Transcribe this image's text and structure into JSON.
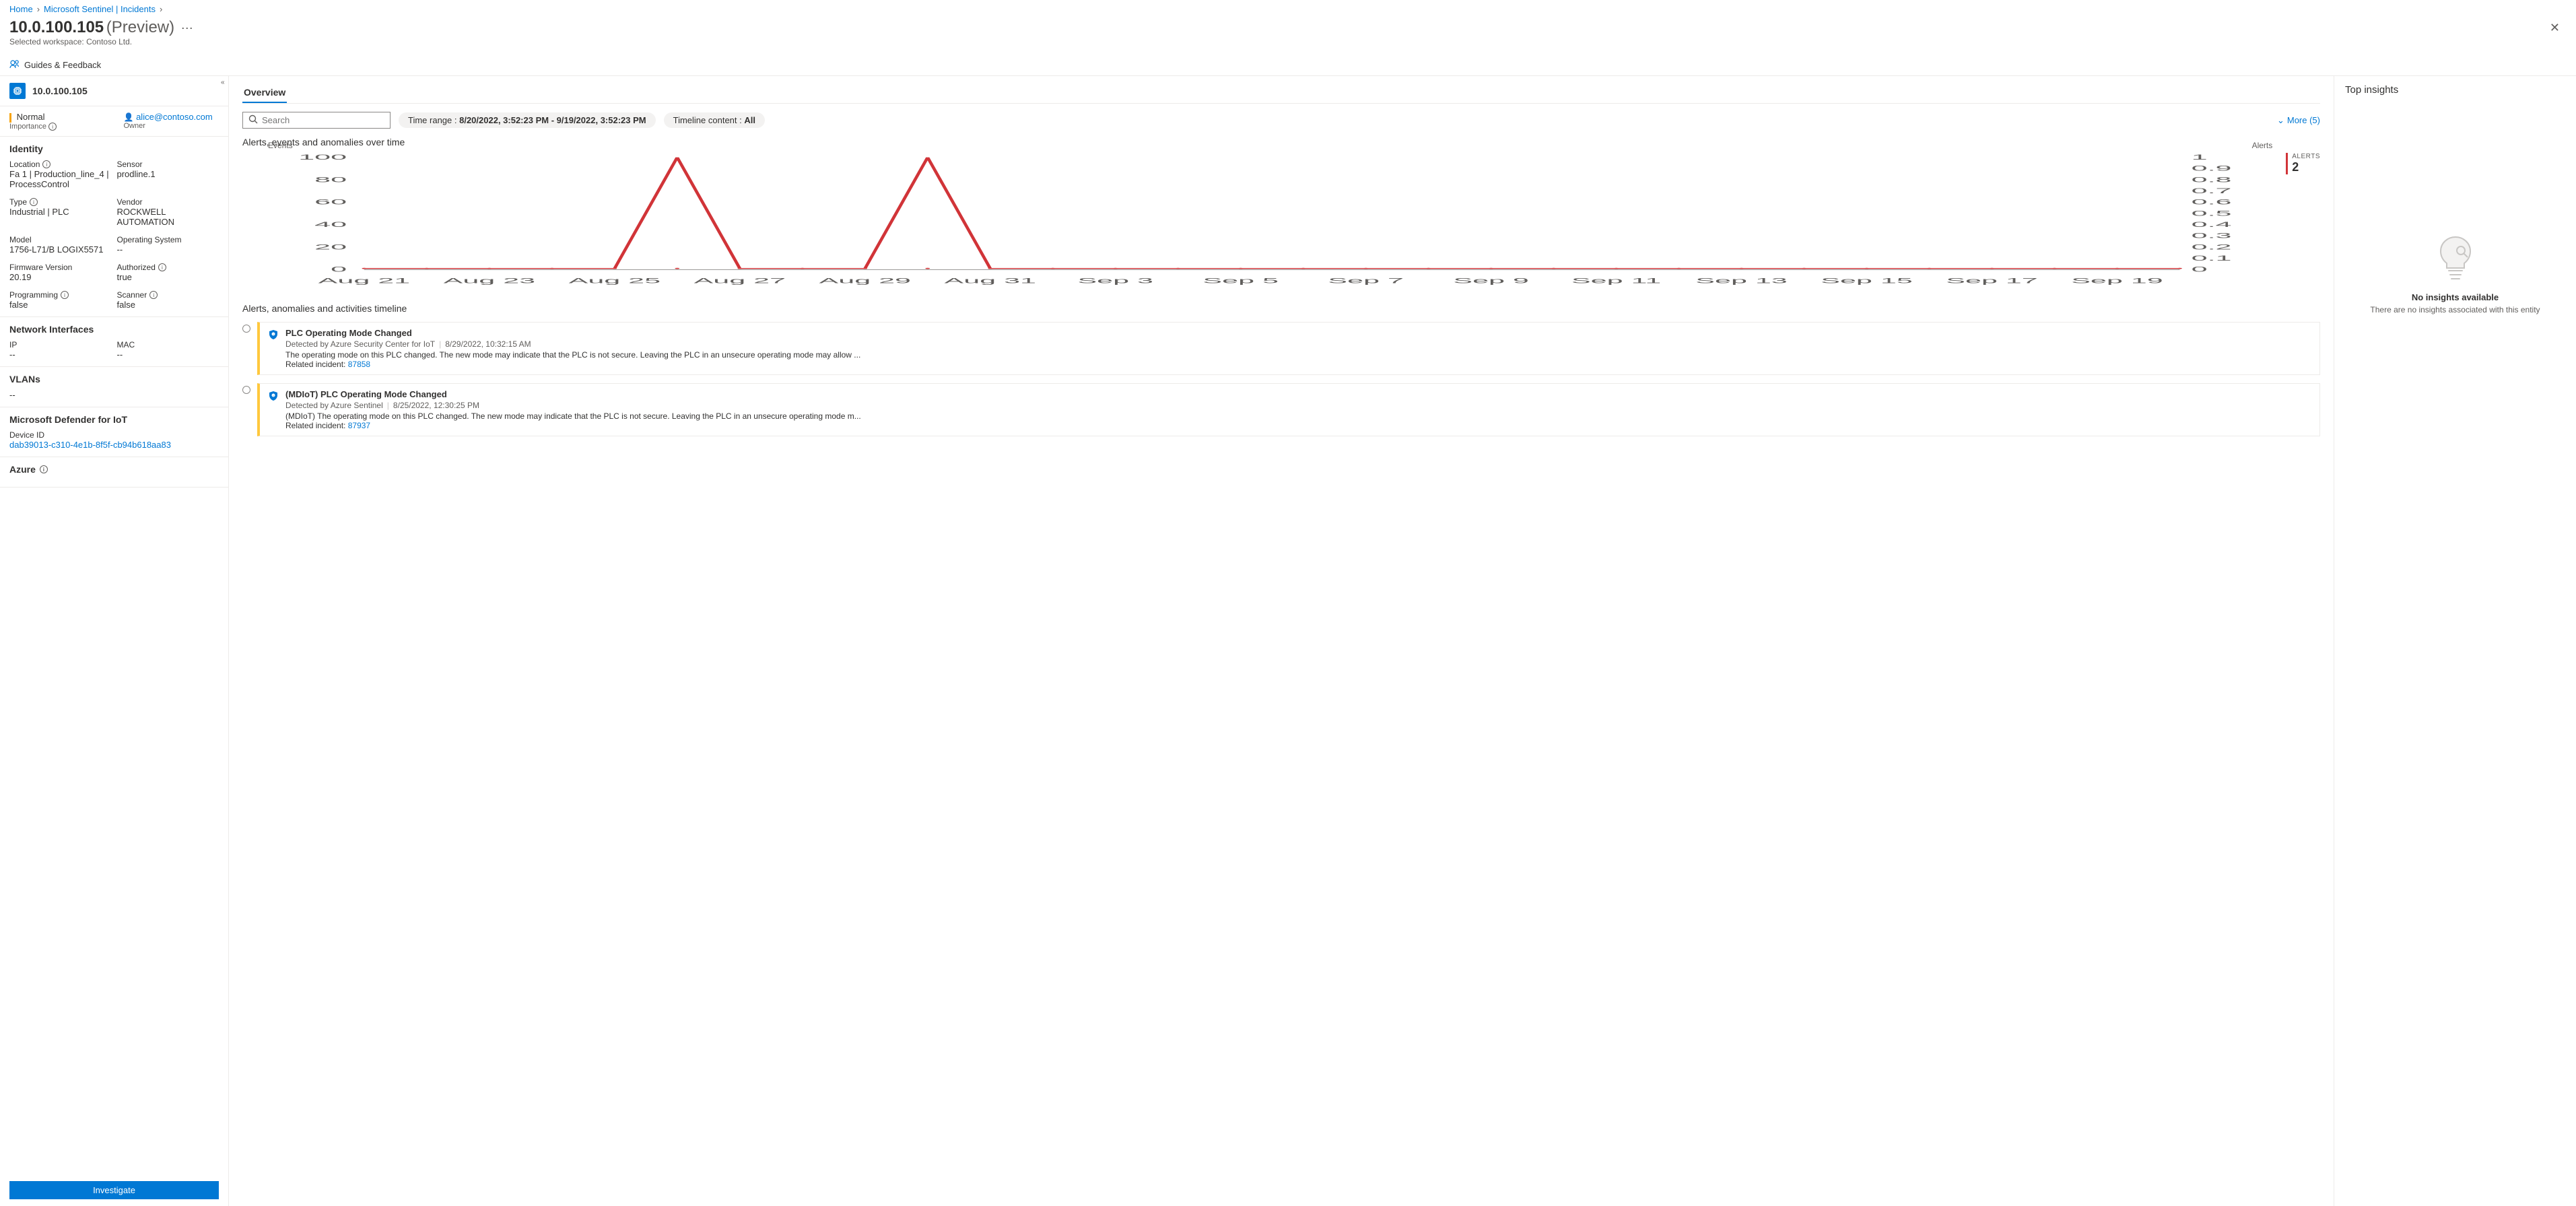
{
  "breadcrumb": {
    "items": [
      "Home",
      "Microsoft Sentinel | Incidents"
    ]
  },
  "title": {
    "main": "10.0.100.105",
    "suffix": "(Preview)",
    "workspace_label": "Selected workspace:",
    "workspace_value": "Contoso Ltd."
  },
  "guides": {
    "label": "Guides & Feedback"
  },
  "side": {
    "header": "10.0.100.105",
    "importance": {
      "value": "Normal",
      "label": "Importance"
    },
    "owner": {
      "value": "alice@contoso.com",
      "label": "Owner"
    },
    "identity": {
      "heading": "Identity",
      "location_label": "Location",
      "location_value": "Fa 1 | Production_line_4 | ProcessControl",
      "sensor_label": "Sensor",
      "sensor_value": "prodline.1",
      "type_label": "Type",
      "type_value": "Industrial | PLC",
      "vendor_label": "Vendor",
      "vendor_value": "ROCKWELL AUTOMATION",
      "model_label": "Model",
      "model_value": "1756-L71/B LOGIX5571",
      "os_label": "Operating System",
      "os_value": "--",
      "fw_label": "Firmware Version",
      "fw_value": "20.19",
      "auth_label": "Authorized",
      "auth_value": "true",
      "prog_label": "Programming",
      "prog_value": "false",
      "scan_label": "Scanner",
      "scan_value": "false"
    },
    "net": {
      "heading": "Network Interfaces",
      "ip_label": "IP",
      "ip_value": "--",
      "mac_label": "MAC",
      "mac_value": "--"
    },
    "vlans": {
      "heading": "VLANs",
      "value": "--"
    },
    "defender": {
      "heading": "Microsoft Defender for IoT",
      "device_id_label": "Device ID",
      "device_id_value": "dab39013-c310-4e1b-8f5f-cb94b618aa83"
    },
    "azure": {
      "heading": "Azure"
    },
    "investigate": "Investigate"
  },
  "main": {
    "tab": "Overview",
    "search_placeholder": "Search",
    "time_range_label": "Time range : ",
    "time_range_value": "8/20/2022, 3:52:23 PM - 9/19/2022, 3:52:23 PM",
    "timeline_content_label": "Timeline content : ",
    "timeline_content_value": "All",
    "more": "More (5)",
    "chart_title": "Alerts, events and anomalies over time",
    "y_left": "Events",
    "y_right": "Alerts",
    "alerts_badge_label": "ALERTS",
    "alerts_badge_value": "2",
    "chart": {
      "type": "line",
      "color": "#d13438",
      "grid_color": "#e1dfdd",
      "text_color": "#605e5c",
      "fontsize": 10,
      "y_left_ticks": [
        0,
        20,
        40,
        60,
        80,
        100
      ],
      "y_right_ticks": [
        0,
        0.1,
        0.2,
        0.3,
        0.4,
        0.5,
        0.6,
        0.7,
        0.8,
        0.9,
        1
      ],
      "x_labels": [
        "Aug 21",
        "Aug 23",
        "Aug 25",
        "Aug 27",
        "Aug 29",
        "Aug 31",
        "Sep 3",
        "Sep 5",
        "Sep 7",
        "Sep 9",
        "Sep 11",
        "Sep 13",
        "Sep 15",
        "Sep 17",
        "Sep 19"
      ],
      "n_days": 30,
      "spikes": [
        {
          "day_index": 5,
          "value": 100
        },
        {
          "day_index": 9,
          "value": 100
        }
      ]
    },
    "timeline_title": "Alerts, anomalies and activities timeline",
    "timeline": [
      {
        "title": "PLC Operating Mode Changed",
        "source": "Detected by Azure Security Center for IoT",
        "when": "8/29/2022, 10:32:15 AM",
        "desc": "The operating mode on this PLC changed. The new mode may indicate that the PLC is not secure. Leaving the PLC in an unsecure operating mode may allow ...",
        "related_label": "Related incident: ",
        "related_id": "87858"
      },
      {
        "title": "(MDIoT) PLC Operating Mode Changed",
        "source": "Detected by Azure Sentinel",
        "when": "8/25/2022, 12:30:25 PM",
        "desc": "(MDIoT) The operating mode on this PLC changed. The new mode may indicate that the PLC is not secure. Leaving the PLC in an unsecure operating mode m...",
        "related_label": "Related incident: ",
        "related_id": "87937"
      }
    ]
  },
  "insights": {
    "heading": "Top insights",
    "empty_head": "No insights available",
    "empty_sub": "There are no insights associated with this entity"
  },
  "colors": {
    "accent": "#0078d4",
    "warning": "#ffc83d",
    "error": "#d13438",
    "orange": "#f7a308"
  }
}
